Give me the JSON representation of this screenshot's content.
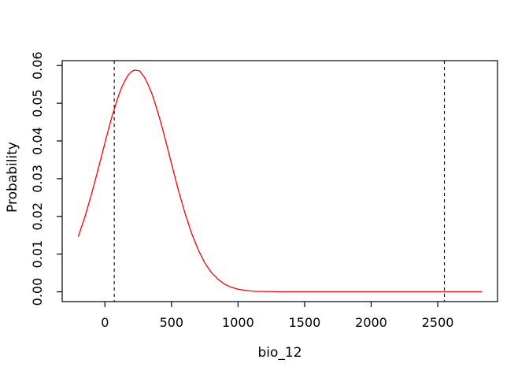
{
  "chart_data": {
    "type": "line",
    "title": "",
    "xlabel": "bio_12",
    "ylabel": "Probability",
    "axis_color": "#000000",
    "background_color": "#ffffff",
    "grid": false,
    "legend": null,
    "xlim": [
      -321,
      2949
    ],
    "ylim": [
      -0.0026,
      0.0613
    ],
    "x_ticks": {
      "values": [
        0,
        500,
        1000,
        1500,
        2000,
        2500
      ],
      "labels": [
        "0",
        "500",
        "1000",
        "1500",
        "2000",
        "2500"
      ]
    },
    "y_ticks": {
      "values": [
        0.0,
        0.01,
        0.02,
        0.03,
        0.04,
        0.05,
        0.06
      ],
      "labels": [
        "0.00",
        "0.01",
        "0.02",
        "0.03",
        "0.04",
        "0.05",
        "0.06"
      ]
    },
    "series": [
      {
        "name": "probability-response-curve",
        "color": "#ff0000",
        "line_width": 1.3,
        "points": [
          [
            -200,
            0.0147
          ],
          [
            -150,
            0.0199
          ],
          [
            -100,
            0.026
          ],
          [
            -50,
            0.0326
          ],
          [
            0,
            0.0395
          ],
          [
            50,
            0.0461
          ],
          [
            100,
            0.0518
          ],
          [
            125,
            0.0541
          ],
          [
            150,
            0.056
          ],
          [
            175,
            0.0575
          ],
          [
            200,
            0.0584
          ],
          [
            215,
            0.0587
          ],
          [
            230,
            0.0588
          ],
          [
            245,
            0.0587
          ],
          [
            260,
            0.0586
          ],
          [
            275,
            0.0579
          ],
          [
            300,
            0.0567
          ],
          [
            325,
            0.0549
          ],
          [
            350,
            0.0528
          ],
          [
            375,
            0.0502
          ],
          [
            400,
            0.0473
          ],
          [
            425,
            0.0442
          ],
          [
            450,
            0.0409
          ],
          [
            475,
            0.0375
          ],
          [
            500,
            0.034
          ],
          [
            550,
            0.0272
          ],
          [
            600,
            0.021
          ],
          [
            650,
            0.0156
          ],
          [
            700,
            0.0112
          ],
          [
            750,
            0.0077
          ],
          [
            800,
            0.0051
          ],
          [
            850,
            0.0033
          ],
          [
            900,
            0.002
          ],
          [
            950,
            0.0012
          ],
          [
            1000,
            0.0007
          ],
          [
            1050,
            0.0004
          ],
          [
            1100,
            0.0002
          ],
          [
            1150,
            0.0001
          ],
          [
            1200,
            0.0001
          ],
          [
            1300,
            0.0
          ],
          [
            1400,
            0.0
          ],
          [
            1500,
            0.0
          ],
          [
            1600,
            0.0
          ],
          [
            1700,
            0.0
          ],
          [
            1800,
            0.0
          ],
          [
            1900,
            0.0
          ],
          [
            2000,
            0.0
          ],
          [
            2100,
            0.0
          ],
          [
            2200,
            0.0
          ],
          [
            2300,
            0.0
          ],
          [
            2400,
            0.0
          ],
          [
            2500,
            0.0
          ],
          [
            2600,
            0.0
          ],
          [
            2700,
            0.0
          ],
          [
            2830,
            0.0
          ]
        ]
      }
    ],
    "vlines": [
      {
        "name": "lower-threshold",
        "x": 70,
        "color": "#000000",
        "style": "dashed"
      },
      {
        "name": "upper-threshold",
        "x": 2550,
        "color": "#000000",
        "style": "dashed"
      }
    ]
  }
}
